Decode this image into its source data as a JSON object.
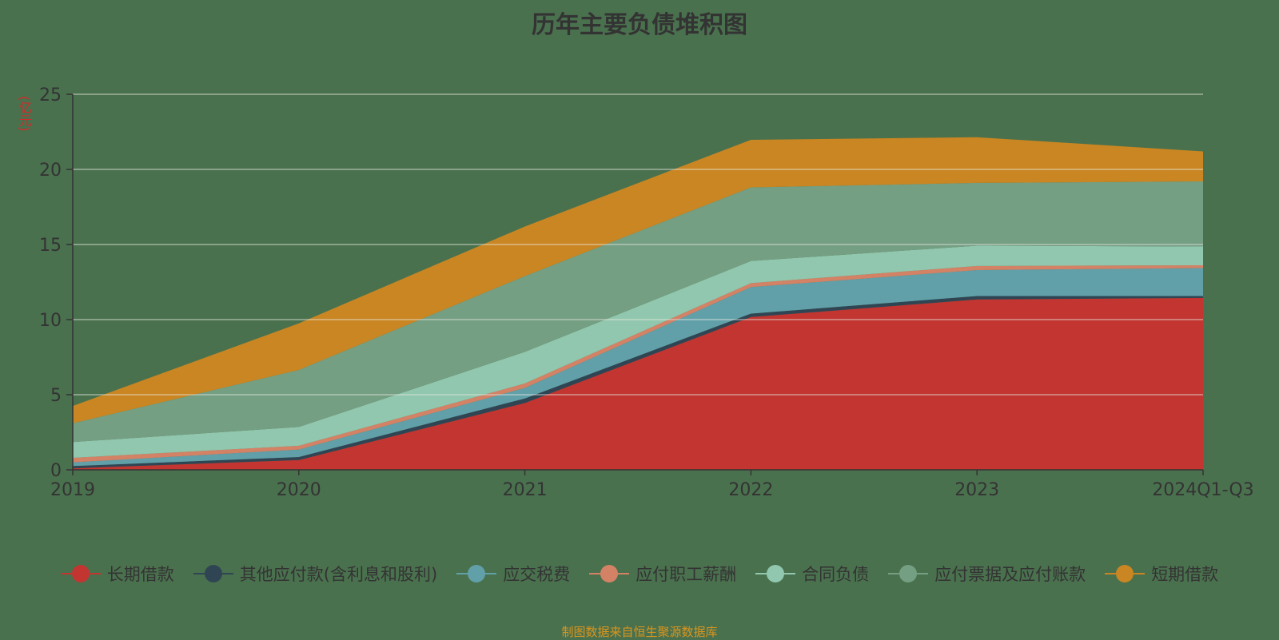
{
  "chart_data": {
    "type": "area",
    "stacked": true,
    "title": "历年主要负债堆积图",
    "ylabel": "(亿元)",
    "xlabel": "",
    "ylim": [
      0,
      25
    ],
    "yticks": [
      0,
      5,
      10,
      15,
      20,
      25
    ],
    "grid": true,
    "legend_position": "bottom",
    "categories": [
      "2019",
      "2020",
      "2021",
      "2022",
      "2023",
      "2024Q1-Q3"
    ],
    "series": [
      {
        "name": "长期借款",
        "color": "#c23531",
        "values": [
          0.1,
          0.65,
          4.45,
          10.17,
          11.34,
          11.44
        ]
      },
      {
        "name": "其他应付款(含利息和股利)",
        "color": "#2f4554",
        "values": [
          0.15,
          0.2,
          0.3,
          0.23,
          0.23,
          0.13
        ]
      },
      {
        "name": "应交税费",
        "color": "#61a0a8",
        "values": [
          0.25,
          0.5,
          0.7,
          1.77,
          1.73,
          1.86
        ]
      },
      {
        "name": "应付职工薪酬",
        "color": "#d48265",
        "values": [
          0.3,
          0.25,
          0.3,
          0.26,
          0.27,
          0.19
        ]
      },
      {
        "name": "合同负债",
        "color": "#91c7ae",
        "values": [
          1.05,
          1.25,
          2.1,
          1.47,
          1.35,
          1.25
        ]
      },
      {
        "name": "应付票据及应付账款",
        "color": "#749f83",
        "values": [
          1.25,
          3.8,
          5.05,
          4.9,
          4.18,
          4.33
        ]
      },
      {
        "name": "短期借款",
        "color": "#ca8622",
        "values": [
          1.15,
          3.1,
          3.3,
          3.17,
          3.04,
          2.0
        ]
      }
    ]
  },
  "footer": "制图数据来自恒生聚源数据库"
}
